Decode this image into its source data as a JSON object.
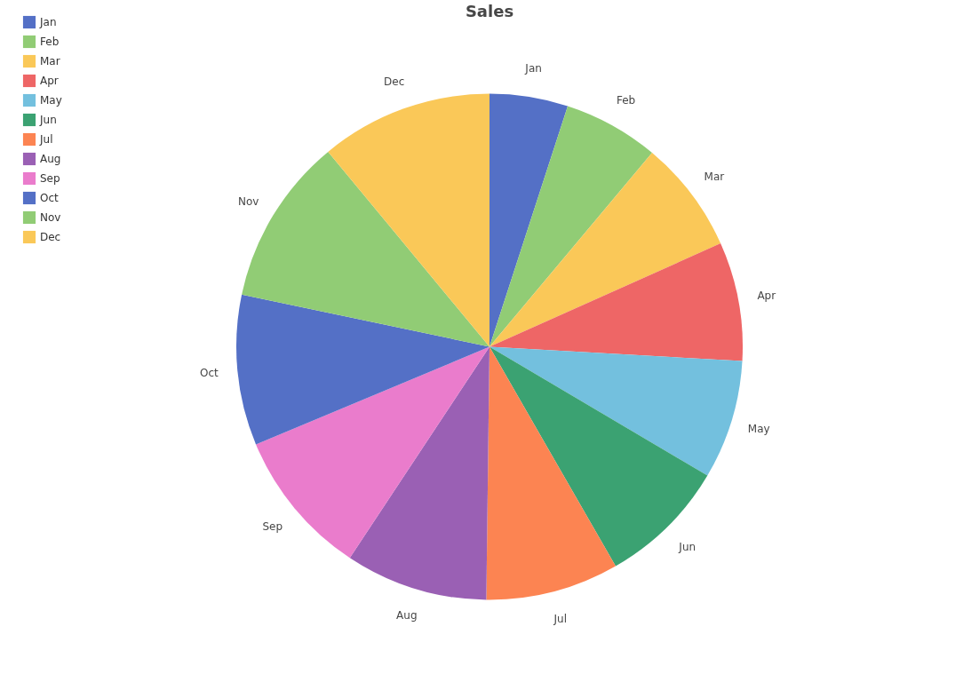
{
  "chart_data": {
    "type": "pie",
    "title": "Sales",
    "categories": [
      "Jan",
      "Feb",
      "Mar",
      "Apr",
      "May",
      "Jun",
      "Jul",
      "Aug",
      "Sep",
      "Oct",
      "Nov",
      "Dec"
    ],
    "values": [
      5.0,
      6.1,
      7.2,
      7.6,
      7.6,
      8.2,
      8.5,
      9.1,
      9.4,
      9.6,
      10.7,
      11.0
    ],
    "colors": [
      "#5470c6",
      "#91cc75",
      "#fac858",
      "#ee6666",
      "#73c0de",
      "#3ba272",
      "#fc8452",
      "#9a60b4",
      "#ea7ccc",
      "#5470c6",
      "#91cc75",
      "#fac858"
    ],
    "legend": "top left"
  }
}
